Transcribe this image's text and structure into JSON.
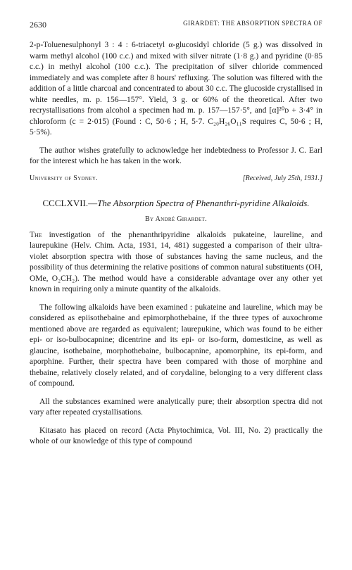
{
  "header": {
    "page_number": "2630",
    "running_head": "GIRARDET: THE ABSORPTION SPECTRA OF"
  },
  "upper_section": {
    "para1": "2-p-Toluenesulphonyl 3 : 4 : 6-triacetyl α-glucosidyl chloride (5 g.) was dissolved in warm methyl alcohol (100 c.c.) and mixed with silver nitrate (1·8 g.) and pyridine (0·85 c.c.) in methyl alcohol (100 c.c.). The precipitation of silver chloride commenced immediately and was complete after 8 hours' refluxing. The solution was filtered with the addition of a little charcoal and concentrated to about 30 c.c. The glucoside crystallised in white needles, m. p. 156—157°. Yield, 3 g. or 60% of the theoretical. After two recrystallisations from alcohol a specimen had m. p. 157—157·5°, and [α]²⁰ᴅ + 3·4° in chloroform (c = 2·015) (Found : C, 50·6 ; H, 5·7. C₂₀H₂₆O₁₁S requires C, 50·6 ; H, 5·5%).",
    "ack": "The author wishes gratefully to acknowledge her indebtedness to Professor J. C. Earl for the interest which he has taken in the work.",
    "affiliation": "University of Sydney.",
    "received": "[Received, July 25th, 1931.]"
  },
  "article": {
    "title_roman": "CCCLXVII.—",
    "title_ital": "The Absorption Spectra of Phenanthri-pyridine Alkaloids.",
    "author": "By André Girardet.",
    "para1_first": "The",
    "para1_rest": " investigation of the phenanthripyridine alkaloids pukateine, laureline, and laurepukine (Helv. Chim. Acta, 1931, 14, 481) suggested a comparison of their ultra-violet absorption spectra with those of substances having the same nucleus, and the possibility of thus determining the relative positions of common natural substituents (OH, OMe, O₂CH₂). The method would have a considerable advantage over any other yet known in requiring only a minute quantity of the alkaloids.",
    "para2": "The following alkaloids have been examined : pukateine and laureline, which may be considered as epiisothebaine and epimorphothebaine, if the three types of auxochrome mentioned above are regarded as equivalent; laurepukine, which was found to be either epi- or iso-bulbocapnine; dicentrine and its epi- or iso-form, domesticine, as well as glaucine, isothebaine, morphothebaine, bulbocapnine, apomorphine, its epi-form, and aporphine. Further, their spectra have been compared with those of morphine and thebaine, relatively closely related, and of corydaline, belonging to a very different class of compound.",
    "para3": "All the substances examined were analytically pure; their absorption spectra did not vary after repeated crystallisations.",
    "para4": "Kitasato has placed on record (Acta Phytochimica, Vol. III, No. 2) practically the whole of our knowledge of this type of compound"
  }
}
